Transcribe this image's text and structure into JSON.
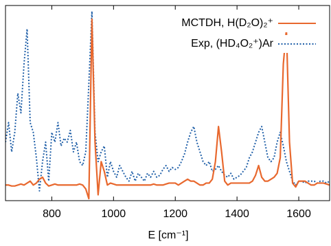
{
  "chart_data": {
    "type": "line",
    "x_label": "E [cm⁻¹]",
    "x": [
      650,
      660,
      670,
      680,
      690,
      700,
      710,
      720,
      730,
      740,
      750,
      760,
      770,
      780,
      790,
      800,
      810,
      820,
      830,
      840,
      850,
      860,
      870,
      880,
      890,
      900,
      910,
      920,
      930,
      940,
      950,
      960,
      970,
      980,
      990,
      1000,
      1010,
      1020,
      1030,
      1040,
      1050,
      1060,
      1070,
      1080,
      1090,
      1100,
      1110,
      1120,
      1130,
      1140,
      1150,
      1160,
      1170,
      1180,
      1190,
      1200,
      1210,
      1220,
      1230,
      1240,
      1250,
      1260,
      1270,
      1280,
      1290,
      1300,
      1310,
      1320,
      1330,
      1340,
      1350,
      1360,
      1370,
      1380,
      1390,
      1400,
      1410,
      1420,
      1430,
      1440,
      1450,
      1460,
      1470,
      1480,
      1490,
      1500,
      1510,
      1520,
      1530,
      1540,
      1550,
      1560,
      1570,
      1580,
      1590,
      1600,
      1610,
      1620,
      1630,
      1640,
      1650,
      1660,
      1670,
      1680,
      1690,
      1700
    ],
    "series": [
      {
        "name": "MCTDH, H(D₂O)₂⁺",
        "color": "#e8682e",
        "style": "solid",
        "values": [
          0.08,
          0.08,
          0.075,
          0.075,
          0.08,
          0.085,
          0.08,
          0.09,
          0.1,
          0.08,
          0.09,
          0.11,
          0.12,
          0.09,
          0.075,
          0.08,
          0.085,
          0.08,
          0.08,
          0.08,
          0.08,
          0.08,
          0.08,
          0.08,
          0.085,
          0.08,
          0.06,
          0.01,
          0.93,
          0.3,
          0.03,
          0.2,
          0.15,
          0.08,
          0.09,
          0.085,
          0.08,
          0.08,
          0.08,
          0.08,
          0.08,
          0.08,
          0.08,
          0.08,
          0.08,
          0.08,
          0.08,
          0.08,
          0.085,
          0.08,
          0.08,
          0.08,
          0.085,
          0.09,
          0.09,
          0.09,
          0.08,
          0.09,
          0.1,
          0.11,
          0.1,
          0.1,
          0.09,
          0.08,
          0.08,
          0.09,
          0.09,
          0.11,
          0.2,
          0.38,
          0.25,
          0.1,
          0.08,
          0.09,
          0.09,
          0.09,
          0.09,
          0.09,
          0.09,
          0.09,
          0.1,
          0.13,
          0.18,
          0.12,
          0.1,
          0.1,
          0.11,
          0.12,
          0.14,
          0.22,
          0.7,
          0.88,
          0.3,
          0.09,
          0.07,
          0.1,
          0.1,
          0.1,
          0.09,
          0.08,
          0.08,
          0.09,
          0.09,
          0.09,
          0.085,
          0.08
        ]
      },
      {
        "name": "Exp, (HD₄O₂⁺)Ar",
        "color": "#1f5fa8",
        "style": "dotted",
        "values": [
          0.3,
          0.4,
          0.25,
          0.35,
          0.55,
          0.45,
          0.7,
          0.88,
          0.4,
          0.35,
          0.22,
          0.05,
          0.2,
          0.3,
          0.1,
          0.35,
          0.3,
          0.4,
          0.28,
          0.32,
          0.3,
          0.36,
          0.25,
          0.3,
          0.2,
          0.18,
          0.25,
          0.6,
          0.97,
          0.35,
          0.2,
          0.25,
          0.28,
          0.12,
          0.2,
          0.15,
          0.12,
          0.18,
          0.15,
          0.12,
          0.1,
          0.15,
          0.1,
          0.14,
          0.12,
          0.1,
          0.14,
          0.12,
          0.15,
          0.12,
          0.13,
          0.16,
          0.18,
          0.15,
          0.17,
          0.16,
          0.17,
          0.2,
          0.24,
          0.3,
          0.35,
          0.38,
          0.3,
          0.25,
          0.2,
          0.18,
          0.2,
          0.15,
          0.16,
          0.18,
          0.15,
          0.13,
          0.12,
          0.14,
          0.11,
          0.12,
          0.13,
          0.15,
          0.17,
          0.22,
          0.25,
          0.3,
          0.35,
          0.38,
          0.3,
          0.22,
          0.2,
          0.22,
          0.3,
          0.35,
          0.28,
          0.2,
          0.15,
          0.1,
          0.08,
          0.1,
          0.1,
          0.09,
          0.1,
          0.1,
          0.1,
          0.09,
          0.1,
          0.1,
          0.09,
          0.1
        ]
      }
    ],
    "xlim": [
      650,
      1700
    ],
    "ylim": [
      0,
      1
    ],
    "xticks": [
      800,
      1000,
      1200,
      1400,
      1600
    ],
    "legend": "upper right"
  }
}
